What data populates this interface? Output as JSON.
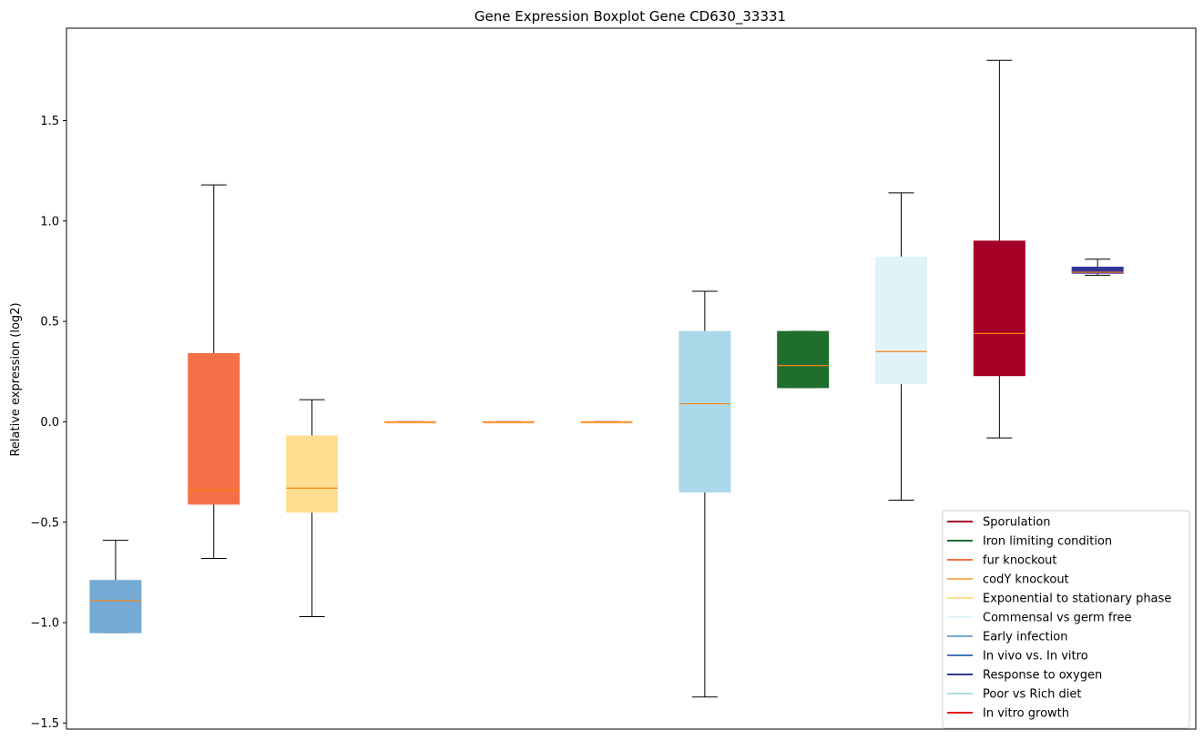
{
  "chart_data": {
    "type": "boxplot",
    "title": "Gene Expression Boxplot Gene CD630_33331",
    "xlabel": "",
    "ylabel": "Relative expression (log2)",
    "ylim": [
      -1.53,
      1.96
    ],
    "yticks": [
      -1.5,
      -1.0,
      -0.5,
      0.0,
      0.5,
      1.0,
      1.5
    ],
    "ytick_labels": [
      "−1.5",
      "−1.0",
      "−0.5",
      "0.0",
      "0.5",
      "1.0",
      "1.5"
    ],
    "grid": false,
    "legend_position": "lower-right",
    "median_color": "#ff7f0e",
    "boxes": [
      {
        "color": "#74aad4",
        "whisker_low": -1.05,
        "q1": -1.05,
        "median": -0.89,
        "q3": -0.79,
        "whisker_high": -0.59
      },
      {
        "color": "#f47046",
        "whisker_low": -0.68,
        "q1": -0.41,
        "median": -0.34,
        "q3": 0.34,
        "whisker_high": 1.18
      },
      {
        "color": "#fedf91",
        "whisker_low": -0.97,
        "q1": -0.45,
        "median": -0.33,
        "q3": -0.07,
        "whisker_high": 0.11
      },
      {
        "color": "#fdae61",
        "whisker_low": 0.0,
        "q1": 0.0,
        "median": 0.0,
        "q3": 0.0,
        "whisker_high": 0.0
      },
      {
        "color": "#fdae61",
        "whisker_low": 0.0,
        "q1": 0.0,
        "median": 0.0,
        "q3": 0.0,
        "whisker_high": 0.0
      },
      {
        "color": "#fdae61",
        "whisker_low": 0.0,
        "q1": 0.0,
        "median": 0.0,
        "q3": 0.0,
        "whisker_high": 0.0
      },
      {
        "color": "#abd9e9",
        "whisker_low": -1.37,
        "q1": -0.35,
        "median": 0.09,
        "q3": 0.45,
        "whisker_high": 0.65
      },
      {
        "color": "#1f6e2e",
        "whisker_low": 0.17,
        "q1": 0.17,
        "median": 0.28,
        "q3": 0.45,
        "whisker_high": 0.45
      },
      {
        "color": "#e0f3f8",
        "whisker_low": -0.39,
        "q1": 0.19,
        "median": 0.35,
        "q3": 0.82,
        "whisker_high": 1.14
      },
      {
        "color": "#a50026",
        "whisker_low": -0.08,
        "q1": 0.23,
        "median": 0.44,
        "q3": 0.9,
        "whisker_high": 1.8
      },
      {
        "color": "#313695",
        "whisker_low": 0.73,
        "q1": 0.74,
        "median": 0.745,
        "q3": 0.77,
        "whisker_high": 0.81
      }
    ],
    "legend": [
      {
        "label": "Sporulation",
        "color": "#a50026"
      },
      {
        "label": "Iron limiting condition",
        "color": "#1f6e2e"
      },
      {
        "label": "fur knockout",
        "color": "#f46d43"
      },
      {
        "label": "codY knockout",
        "color": "#fdae61"
      },
      {
        "label": "Exponential to stationary phase",
        "color": "#fee090"
      },
      {
        "label": "Commensal vs germ free",
        "color": "#e0f3f8"
      },
      {
        "label": "Early infection",
        "color": "#74add1"
      },
      {
        "label": "In vivo vs. In vitro",
        "color": "#4575b4"
      },
      {
        "label": "Response to oxygen",
        "color": "#313695"
      },
      {
        "label": "Poor vs Rich diet",
        "color": "#abd9e9"
      },
      {
        "label": "In vitro growth",
        "color": "#e41a1c"
      }
    ]
  }
}
